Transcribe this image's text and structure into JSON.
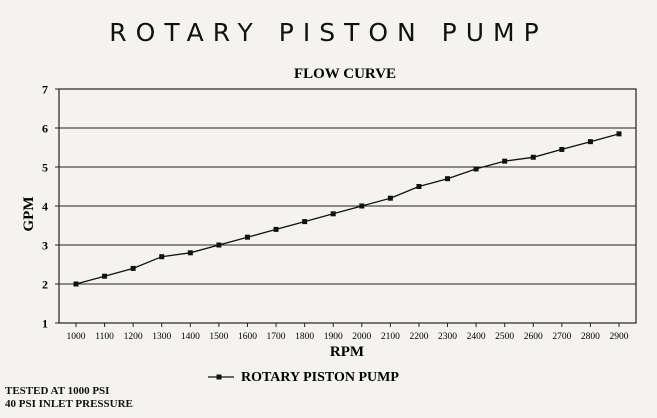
{
  "chart_data": {
    "type": "line",
    "title": "ROTARY PISTON PUMP",
    "subtitle": "FLOW CURVE",
    "xlabel": "RPM",
    "ylabel": "GPM",
    "x": [
      1000,
      1100,
      1200,
      1300,
      1400,
      1500,
      1600,
      1700,
      1800,
      1900,
      2000,
      2100,
      2200,
      2300,
      2400,
      2500,
      2600,
      2700,
      2800,
      2900
    ],
    "series": [
      {
        "name": "ROTARY PISTON PUMP",
        "values": [
          2.0,
          2.2,
          2.4,
          2.7,
          2.8,
          3.0,
          3.2,
          3.4,
          3.6,
          3.8,
          4.0,
          4.2,
          4.5,
          4.7,
          4.95,
          5.15,
          5.25,
          5.45,
          5.65,
          5.85
        ]
      }
    ],
    "yticks": [
      1,
      2,
      3,
      4,
      5,
      6,
      7
    ],
    "xlim": [
      1000,
      2900
    ],
    "ylim": [
      1,
      7
    ],
    "grid": "horizontal",
    "legend": "bottom-center",
    "colors": {
      "line": "#111111",
      "grid": "#222222",
      "background": "#f4f3ef"
    }
  },
  "notes": [
    "TESTED AT 1000 PSI",
    "40 PSI INLET PRESSURE"
  ]
}
